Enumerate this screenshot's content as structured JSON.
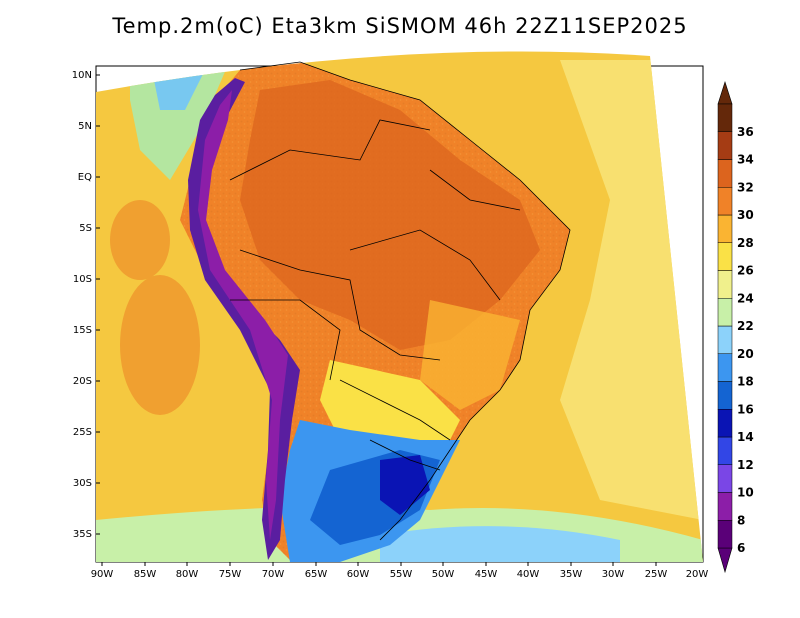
{
  "title": "Temp.2m(oC) Eta3km SiSMOM 46h 22Z11SEP2025",
  "lat_labels": [
    "10N",
    "5N",
    "EQ",
    "5S",
    "10S",
    "15S",
    "20S",
    "25S",
    "30S",
    "35S"
  ],
  "lon_labels": [
    "90W",
    "85W",
    "80W",
    "75W",
    "70W",
    "65W",
    "60W",
    "55W",
    "50W",
    "45W",
    "40W",
    "35W",
    "30W",
    "25W",
    "20W"
  ],
  "colorbar": {
    "labels": [
      "6",
      "8",
      "10",
      "12",
      "14",
      "16",
      "18",
      "20",
      "22",
      "24",
      "26",
      "28",
      "30",
      "32",
      "34",
      "36"
    ],
    "colors": [
      "#5a0078",
      "#8c1ea8",
      "#7a46e6",
      "#3246e6",
      "#0a14b4",
      "#1464d2",
      "#3c96f0",
      "#8cd2fa",
      "#c8f0a8",
      "#f0f08c",
      "#fae146",
      "#fab432",
      "#f08228",
      "#dc641e",
      "#a53c14",
      "#64280a"
    ]
  },
  "regions": [
    {
      "name": "ocean-warm",
      "color": "#f5c840"
    },
    {
      "name": "continent-hot",
      "color": "#f08228"
    },
    {
      "name": "continent-very-hot",
      "color": "#dc641e"
    },
    {
      "name": "andes-cold",
      "color": "#5a1ea0"
    },
    {
      "name": "south-cool",
      "color": "#1464d2"
    }
  ]
}
